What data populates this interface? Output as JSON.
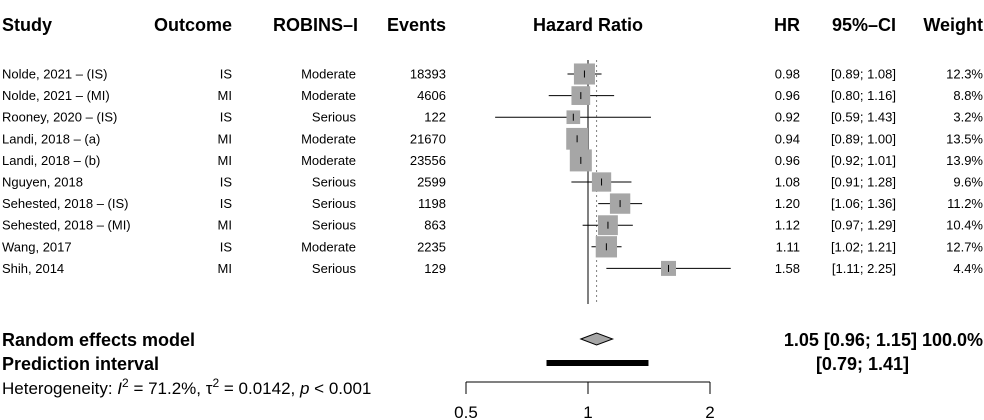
{
  "chart_data": {
    "type": "forest",
    "columns": {
      "study": "Study",
      "outcome": "Outcome",
      "robins": "ROBINS–I",
      "events": "Events",
      "hr_plot": "Hazard Ratio",
      "hr": "HR",
      "ci": "95%–CI",
      "weight": "Weight"
    },
    "studies": [
      {
        "study": "Nolde, 2021 – (IS)",
        "outcome": "IS",
        "robins": "Moderate",
        "events": "18393",
        "hr": 0.98,
        "lo": 0.89,
        "hi": 1.08,
        "hr_text": "0.98",
        "ci_text": "[0.89; 1.08]",
        "weight_text": "12.3%",
        "weight": 12.3
      },
      {
        "study": "Nolde, 2021 – (MI)",
        "outcome": "MI",
        "robins": "Moderate",
        "events": "4606",
        "hr": 0.96,
        "lo": 0.8,
        "hi": 1.16,
        "hr_text": "0.96",
        "ci_text": "[0.80; 1.16]",
        "weight_text": "8.8%",
        "weight": 8.8
      },
      {
        "study": "Rooney, 2020 – (IS)",
        "outcome": "IS",
        "robins": "Serious",
        "events": "122",
        "hr": 0.92,
        "lo": 0.59,
        "hi": 1.43,
        "hr_text": "0.92",
        "ci_text": "[0.59; 1.43]",
        "weight_text": "3.2%",
        "weight": 3.2
      },
      {
        "study": "Landi, 2018 – (a)",
        "outcome": "MI",
        "robins": "Moderate",
        "events": "21670",
        "hr": 0.94,
        "lo": 0.89,
        "hi": 1.0,
        "hr_text": "0.94",
        "ci_text": "[0.89; 1.00]",
        "weight_text": "13.5%",
        "weight": 13.5
      },
      {
        "study": "Landi, 2018 – (b)",
        "outcome": "MI",
        "robins": "Moderate",
        "events": "23556",
        "hr": 0.96,
        "lo": 0.92,
        "hi": 1.01,
        "hr_text": "0.96",
        "ci_text": "[0.92; 1.01]",
        "weight_text": "13.9%",
        "weight": 13.9
      },
      {
        "study": "Nguyen, 2018",
        "outcome": "IS",
        "robins": "Serious",
        "events": "2599",
        "hr": 1.08,
        "lo": 0.91,
        "hi": 1.28,
        "hr_text": "1.08",
        "ci_text": "[0.91; 1.28]",
        "weight_text": "9.6%",
        "weight": 9.6
      },
      {
        "study": "Sehested, 2018 – (IS)",
        "outcome": "IS",
        "robins": "Serious",
        "events": "1198",
        "hr": 1.2,
        "lo": 1.06,
        "hi": 1.36,
        "hr_text": "1.20",
        "ci_text": "[1.06; 1.36]",
        "weight_text": "11.2%",
        "weight": 11.2
      },
      {
        "study": "Sehested, 2018 – (MI)",
        "outcome": "MI",
        "robins": "Serious",
        "events": "863",
        "hr": 1.12,
        "lo": 0.97,
        "hi": 1.29,
        "hr_text": "1.12",
        "ci_text": "[0.97; 1.29]",
        "weight_text": "10.4%",
        "weight": 10.4
      },
      {
        "study": "Wang, 2017",
        "outcome": "IS",
        "robins": "Moderate",
        "events": "2235",
        "hr": 1.11,
        "lo": 1.02,
        "hi": 1.21,
        "hr_text": "1.11",
        "ci_text": "[1.02; 1.21]",
        "weight_text": "12.7%",
        "weight": 12.7
      },
      {
        "study": "Shih, 2014",
        "outcome": "MI",
        "robins": "Serious",
        "events": "129",
        "hr": 1.58,
        "lo": 1.11,
        "hi": 2.25,
        "hr_text": "1.58",
        "ci_text": "[1.11; 2.25]",
        "weight_text": "4.4%",
        "weight": 4.4
      }
    ],
    "random_effects": {
      "label": "Random effects model",
      "hr": 1.05,
      "lo": 0.96,
      "hi": 1.15,
      "text": "1.05 [0.96; 1.15] 100.0%"
    },
    "prediction_interval": {
      "label": "Prediction interval",
      "lo": 0.79,
      "hi": 1.41,
      "text": "[0.79; 1.41]"
    },
    "heterogeneity": {
      "prefix": "Heterogeneity: ",
      "i2_symbol": "I",
      "i2_value": " = 71.2%, ",
      "tau_symbol": "τ",
      "tau_value": " = 0.0142, ",
      "p_symbol": "p",
      "p_value": " < 0.001"
    },
    "x_axis": {
      "scale": "log",
      "ticks": [
        0.5,
        1,
        2
      ],
      "tick_labels": [
        "0.5",
        "1",
        "2"
      ],
      "range": [
        0.5,
        2
      ],
      "reference_line": 1,
      "summary_line": 1.05
    },
    "colors": {
      "box": "#a6a6a6",
      "diamond": "#a6a6a6",
      "line": "#000000",
      "summary_line": "#808080"
    }
  }
}
